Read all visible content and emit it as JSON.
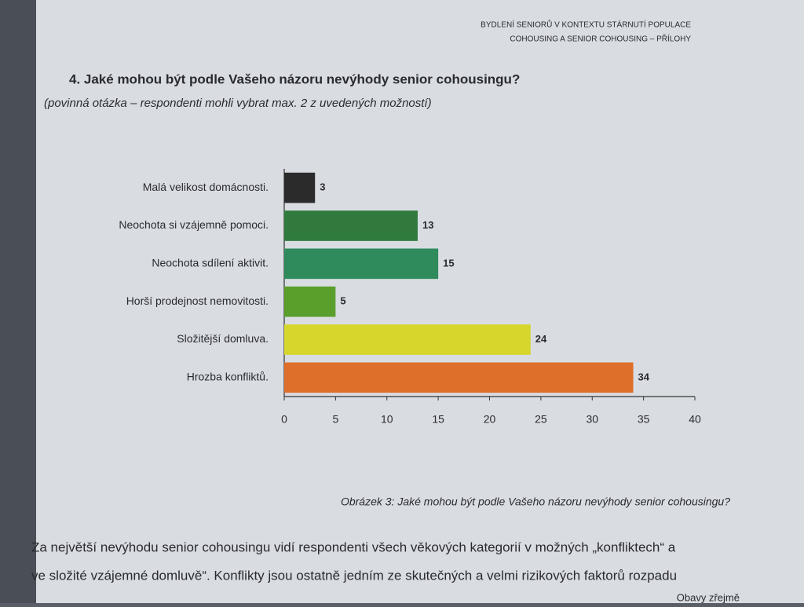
{
  "header": {
    "line1": "BYDLENÍ SENIORŮ V KONTEXTU STÁRNUTÍ POPULACE",
    "line2": "COHOUSING A SENIOR COHOUSING – PŘÍLOHY"
  },
  "question": "4. Jaké mohou být podle Vašeho názoru nevýhody senior cohousingu?",
  "note": "(povinná otázka – respondenti mohli vybrat max. 2 z uvedených možností)",
  "chart_data": {
    "type": "bar",
    "orientation": "horizontal",
    "categories": [
      "Malá velikost domácnosti.",
      "Neochota si vzájemně pomoci.",
      "Neochota sdílení aktivit.",
      "Horší prodejnost nemovitosti.",
      "Složitější domluva.",
      "Hrozba konfliktů."
    ],
    "values": [
      3,
      13,
      15,
      5,
      24,
      34
    ],
    "colors": [
      "#2b2b2b",
      "#2f7a3c",
      "#2f8a5c",
      "#5a9e2c",
      "#d6d62c",
      "#de6f2b"
    ],
    "xlim": [
      0,
      40
    ],
    "xticks": [
      0,
      5,
      10,
      15,
      20,
      25,
      30,
      35,
      40
    ],
    "grid": false
  },
  "caption": "Obrázek 3: Jaké mohou být podle Vašeho názoru nevýhody senior cohousingu?",
  "body": [
    "Za největší nevýhodu senior cohousingu vidí respondenti všech věkových kategorií v možných „konfliktech“ a",
    "ve složité vzájemné domluvě“. Konflikty jsou ostatně jedním ze skutečných a velmi rizikových faktorů rozpadu",
    "Obavy zřejmě"
  ]
}
